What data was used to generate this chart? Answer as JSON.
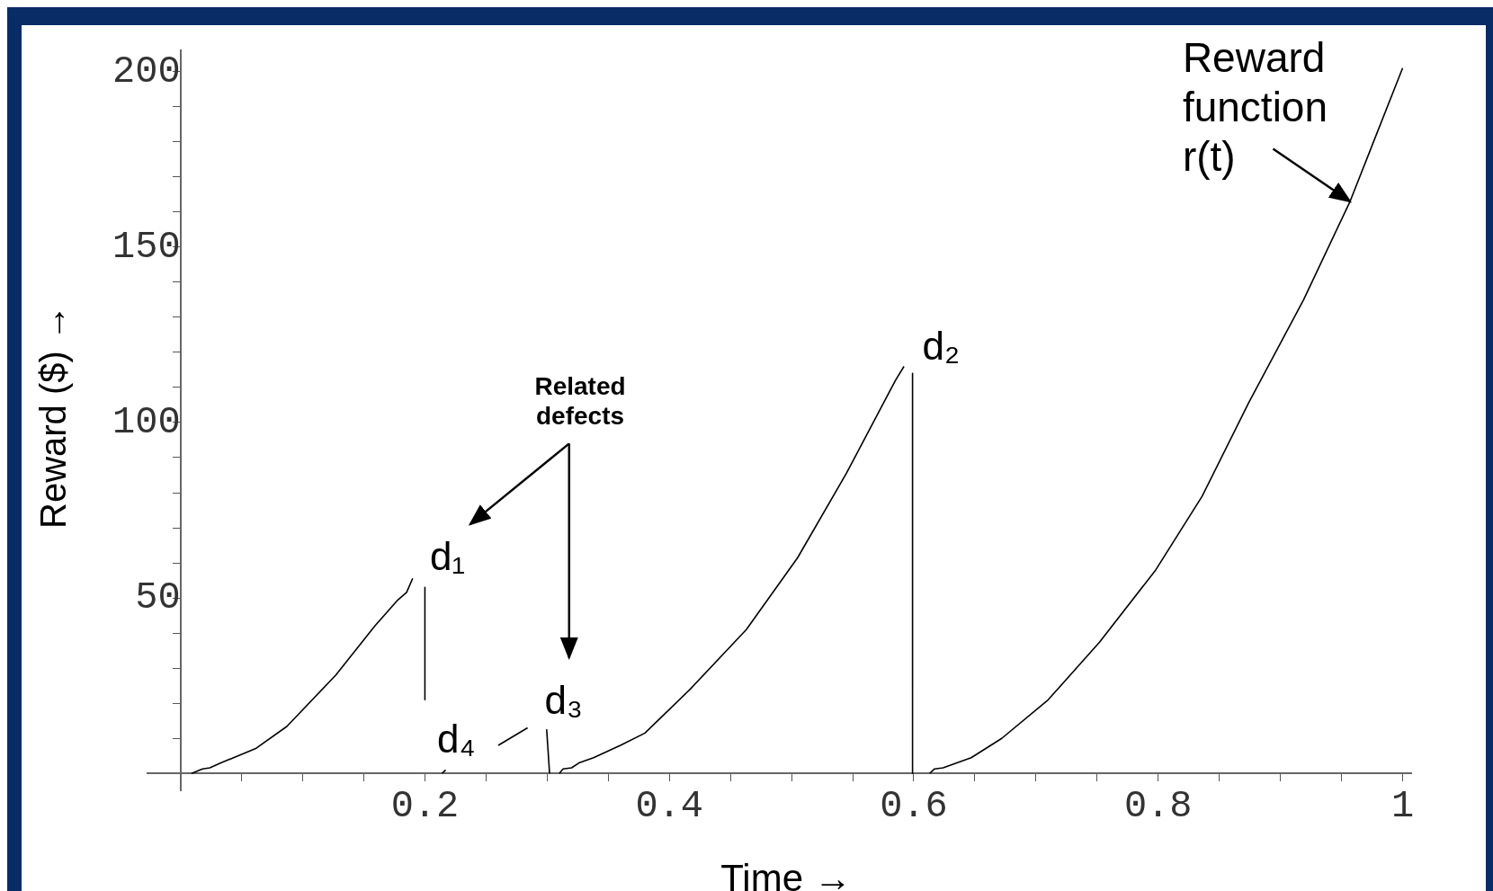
{
  "chart_data": {
    "type": "line",
    "xlabel": "Time →",
    "ylabel": "Reward ($) →",
    "xlim": [
      -0.027,
      1.007
    ],
    "ylim": [
      -5,
      206
    ],
    "xticks": [
      {
        "value": 0,
        "label": null
      },
      {
        "value": 0.05,
        "label": null
      },
      {
        "value": 0.1,
        "label": null
      },
      {
        "value": 0.15,
        "label": null
      },
      {
        "value": 0.2,
        "label": "0.2"
      },
      {
        "value": 0.25,
        "label": null
      },
      {
        "value": 0.3,
        "label": null
      },
      {
        "value": 0.35,
        "label": null
      },
      {
        "value": 0.4,
        "label": "0.4"
      },
      {
        "value": 0.45,
        "label": null
      },
      {
        "value": 0.5,
        "label": null
      },
      {
        "value": 0.55,
        "label": null
      },
      {
        "value": 0.6,
        "label": "0.6"
      },
      {
        "value": 0.65,
        "label": null
      },
      {
        "value": 0.7,
        "label": null
      },
      {
        "value": 0.75,
        "label": null
      },
      {
        "value": 0.8,
        "label": "0.8"
      },
      {
        "value": 0.85,
        "label": null
      },
      {
        "value": 0.9,
        "label": null
      },
      {
        "value": 0.95,
        "label": null
      },
      {
        "value": 1,
        "label": "1"
      }
    ],
    "yticks": [
      {
        "value": 0,
        "label": null
      },
      {
        "value": 10,
        "label": null
      },
      {
        "value": 20,
        "label": null
      },
      {
        "value": 30,
        "label": null
      },
      {
        "value": 40,
        "label": null
      },
      50,
      {
        "value": 60,
        "label": null
      },
      {
        "value": 70,
        "label": null
      },
      {
        "value": 80,
        "label": null
      },
      {
        "value": 90,
        "label": null
      },
      100,
      {
        "value": 110,
        "label": null
      },
      {
        "value": 120,
        "label": null
      },
      {
        "value": 130,
        "label": null
      },
      {
        "value": 140,
        "label": null
      },
      150,
      {
        "value": 160,
        "label": null
      },
      {
        "value": 170,
        "label": null
      },
      {
        "value": 180,
        "label": null
      },
      {
        "value": 190,
        "label": null
      },
      200
    ],
    "grid": false,
    "legend": false,
    "marker": "none",
    "line_style": "solid",
    "series": [
      {
        "color": "#000000",
        "x": [
          0.009,
          0.018,
          0.024,
          0.033,
          0.062,
          0.087,
          0.127,
          0.159,
          0.178,
          0.185,
          0.19
        ],
        "values": [
          0,
          1.3,
          1.6,
          3,
          7.2,
          13.4,
          28,
          42,
          49.5,
          51.6,
          55.6
        ]
      },
      {
        "color": "#000000",
        "x": [
          0.2,
          0.2
        ],
        "values": [
          53,
          21
        ]
      },
      {
        "color": "#000000",
        "x": [
          0.214,
          0.217
        ],
        "values": [
          0,
          1
        ]
      },
      {
        "color": "#000000",
        "x": [
          0.26,
          0.284
        ],
        "values": [
          8,
          13
        ]
      },
      {
        "color": "#000000",
        "x": [
          0.2996,
          0.302
        ],
        "values": [
          12.6,
          0
        ]
      },
      {
        "color": "#000000",
        "x": [
          0.31,
          0.313,
          0.32,
          0.326,
          0.338,
          0.36,
          0.38,
          0.417,
          0.463,
          0.505,
          0.545,
          0.585,
          0.592
        ],
        "values": [
          0,
          1.3,
          1.6,
          3,
          4.5,
          8,
          11.5,
          24,
          41,
          61.5,
          85.6,
          112,
          116
        ]
      },
      {
        "color": "#000000",
        "x": [
          0.599,
          0.599
        ],
        "values": [
          114,
          0
        ]
      },
      {
        "color": "#000000",
        "x": [
          0.613,
          0.617,
          0.624,
          0.647,
          0.672,
          0.71,
          0.752,
          0.798,
          0.836,
          0.874,
          0.919,
          0.957,
          1.0
        ],
        "values": [
          0,
          1.3,
          1.6,
          4.5,
          10,
          21,
          37.4,
          58,
          79,
          105.6,
          135,
          163,
          201
        ]
      }
    ],
    "annotations": [
      "d₁",
      "d₂",
      "d₃",
      "d₄",
      "Related defects",
      {
        "text": "Reward function r(t)",
        "x": 0.957,
        "y": 163
      }
    ]
  }
}
